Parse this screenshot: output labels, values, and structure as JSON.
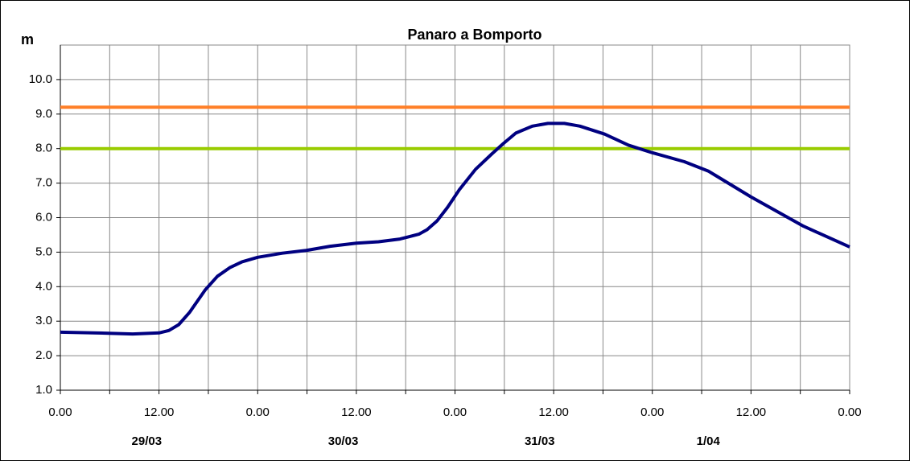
{
  "chart_data": {
    "type": "line",
    "title": "Panaro a Bomporto",
    "y_label": "m",
    "x": [
      0,
      5.9,
      8.8,
      12,
      13.2,
      14.4,
      15.7,
      17.6,
      19.1,
      20.6,
      22.1,
      24,
      27,
      29.9,
      32.8,
      36,
      38.7,
      41.3,
      43.6,
      44.6,
      45.8,
      47.1,
      48.5,
      50.5,
      52.5,
      53.9,
      55.4,
      57.4,
      59.3,
      61.3,
      63.2,
      66.2,
      69.1,
      72,
      75.9,
      78.8,
      84,
      90.4,
      96
    ],
    "series": [
      {
        "color": "#000080",
        "values": [
          2.68,
          2.65,
          2.63,
          2.66,
          2.73,
          2.9,
          3.25,
          3.9,
          4.3,
          4.55,
          4.72,
          4.85,
          4.97,
          5.05,
          5.17,
          5.26,
          5.3,
          5.38,
          5.52,
          5.65,
          5.9,
          6.3,
          6.8,
          7.4,
          7.85,
          8.15,
          8.45,
          8.65,
          8.73,
          8.73,
          8.65,
          8.42,
          8.1,
          7.88,
          7.62,
          7.35,
          6.6,
          5.75,
          5.15
        ]
      }
    ],
    "thresholds": [
      {
        "value": 9.2,
        "color": "#ff7f27"
      },
      {
        "value": 8.0,
        "color": "#99cc00"
      }
    ],
    "xlim": [
      0,
      96
    ],
    "xticks": [
      {
        "value": 0,
        "label": "0.00"
      },
      {
        "value": 12,
        "label": "12.00"
      },
      {
        "value": 24,
        "label": "0.00"
      },
      {
        "value": 36,
        "label": "12.00"
      },
      {
        "value": 48,
        "label": "0.00"
      },
      {
        "value": 60,
        "label": "12.00"
      },
      {
        "value": 72,
        "label": "0.00"
      },
      {
        "value": 84,
        "label": "12.00"
      },
      {
        "value": 96,
        "label": "0.00"
      }
    ],
    "xminorticks": [
      6,
      18,
      30,
      42,
      54,
      66,
      78,
      90
    ],
    "date_labels": [
      {
        "value": 10.5,
        "label": "29/03"
      },
      {
        "value": 34.4,
        "label": "30/03"
      },
      {
        "value": 58.3,
        "label": "31/03"
      },
      {
        "value": 78.8,
        "label": "1/04"
      }
    ],
    "ylim": [
      1,
      11
    ],
    "yticks": [
      {
        "value": 1,
        "label": "1.0"
      },
      {
        "value": 2,
        "label": "2.0"
      },
      {
        "value": 3,
        "label": "3.0"
      },
      {
        "value": 4,
        "label": "4.0"
      },
      {
        "value": 5,
        "label": "5.0"
      },
      {
        "value": 6,
        "label": "6.0"
      },
      {
        "value": 7,
        "label": "7.0"
      },
      {
        "value": 8,
        "label": "8.0"
      },
      {
        "value": 9,
        "label": "9.0"
      },
      {
        "value": 10,
        "label": "10.0"
      }
    ],
    "grid": true
  }
}
